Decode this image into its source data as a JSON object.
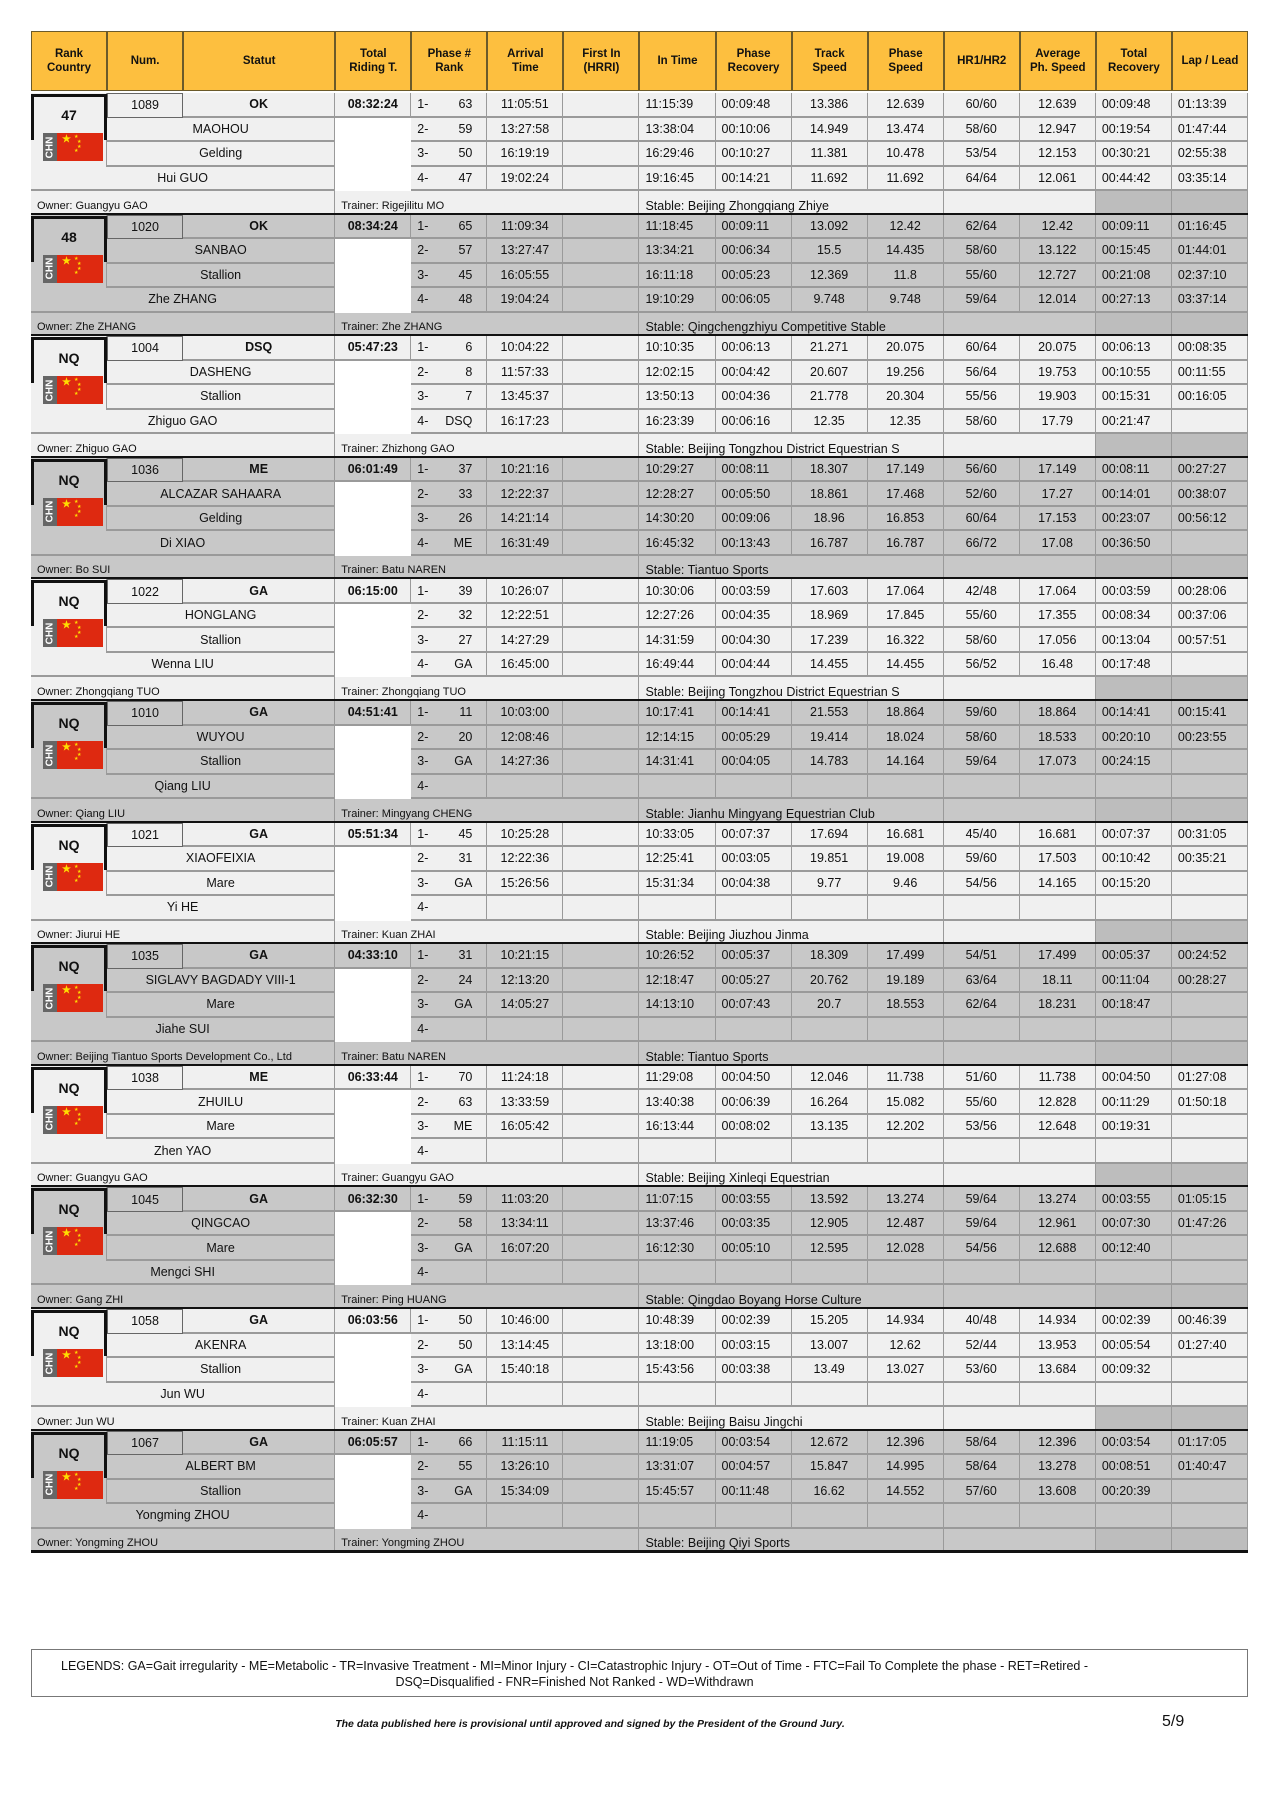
{
  "colors": {
    "header_bg": "#fdbf3f",
    "row_light": "#f0f0f0",
    "row_dark": "#c8c8c8",
    "cell_gray": "#bdbdbd",
    "flag_red": "#de2910"
  },
  "headers": [
    "Rank\nCountry",
    "Num.",
    "Statut",
    "Total\nRiding T.",
    "Phase #\nRank",
    "Arrival\nTime",
    "First In\n(HRRI)",
    "In Time",
    "Phase\nRecovery",
    "Track\nSpeed",
    "Phase\nSpeed",
    "HR1/HR2",
    "Average\nPh. Speed",
    "Total\nRecovery",
    "Lap / Lead"
  ],
  "groups": [
    {
      "rank": "47",
      "country": "CHN",
      "num": "1089",
      "statut": "OK",
      "total": "08:32:24",
      "horse": "MAOHOU",
      "sex": "Gelding",
      "rider": "Hui GUO",
      "owner": "Owner: Guangyu GAO",
      "trainer": "Trainer: Rigejilitu MO",
      "stable": "Stable: Beijing Zhongqiang Zhiye",
      "phases": [
        [
          "1-",
          "63",
          "11:05:51",
          "",
          "11:15:39",
          "00:09:48",
          "13.386",
          "12.639",
          "60/60",
          "12.639",
          "00:09:48",
          "01:13:39"
        ],
        [
          "2-",
          "59",
          "13:27:58",
          "",
          "13:38:04",
          "00:10:06",
          "14.949",
          "13.474",
          "58/60",
          "12.947",
          "00:19:54",
          "01:47:44"
        ],
        [
          "3-",
          "50",
          "16:19:19",
          "",
          "16:29:46",
          "00:10:27",
          "11.381",
          "10.478",
          "53/54",
          "12.153",
          "00:30:21",
          "02:55:38"
        ],
        [
          "4-",
          "47",
          "19:02:24",
          "",
          "19:16:45",
          "00:14:21",
          "11.692",
          "11.692",
          "64/64",
          "12.061",
          "00:44:42",
          "03:35:14"
        ]
      ]
    },
    {
      "rank": "48",
      "country": "CHN",
      "num": "1020",
      "statut": "OK",
      "total": "08:34:24",
      "horse": "SANBAO",
      "sex": "Stallion",
      "rider": "Zhe ZHANG",
      "owner": "Owner: Zhe ZHANG",
      "trainer": "Trainer: Zhe ZHANG",
      "stable": "Stable: Qingchengzhiyu Competitive Stable",
      "phases": [
        [
          "1-",
          "65",
          "11:09:34",
          "",
          "11:18:45",
          "00:09:11",
          "13.092",
          "12.42",
          "62/64",
          "12.42",
          "00:09:11",
          "01:16:45"
        ],
        [
          "2-",
          "57",
          "13:27:47",
          "",
          "13:34:21",
          "00:06:34",
          "15.5",
          "14.435",
          "58/60",
          "13.122",
          "00:15:45",
          "01:44:01"
        ],
        [
          "3-",
          "45",
          "16:05:55",
          "",
          "16:11:18",
          "00:05:23",
          "12.369",
          "11.8",
          "55/60",
          "12.727",
          "00:21:08",
          "02:37:10"
        ],
        [
          "4-",
          "48",
          "19:04:24",
          "",
          "19:10:29",
          "00:06:05",
          "9.748",
          "9.748",
          "59/64",
          "12.014",
          "00:27:13",
          "03:37:14"
        ]
      ]
    },
    {
      "rank": "NQ",
      "country": "CHN",
      "num": "1004",
      "statut": "DSQ",
      "total": "05:47:23",
      "horse": "DASHENG",
      "sex": "Stallion",
      "rider": "Zhiguo GAO",
      "owner": "Owner: Zhiguo GAO",
      "trainer": "Trainer: Zhizhong GAO",
      "stable": "Stable: Beijing Tongzhou District Equestrian S",
      "phases": [
        [
          "1-",
          "6",
          "10:04:22",
          "",
          "10:10:35",
          "00:06:13",
          "21.271",
          "20.075",
          "60/64",
          "20.075",
          "00:06:13",
          "00:08:35"
        ],
        [
          "2-",
          "8",
          "11:57:33",
          "",
          "12:02:15",
          "00:04:42",
          "20.607",
          "19.256",
          "56/64",
          "19.753",
          "00:10:55",
          "00:11:55"
        ],
        [
          "3-",
          "7",
          "13:45:37",
          "",
          "13:50:13",
          "00:04:36",
          "21.778",
          "20.304",
          "55/56",
          "19.903",
          "00:15:31",
          "00:16:05"
        ],
        [
          "4-",
          "DSQ",
          "16:17:23",
          "",
          "16:23:39",
          "00:06:16",
          "12.35",
          "12.35",
          "58/60",
          "17.79",
          "00:21:47",
          ""
        ]
      ]
    },
    {
      "rank": "NQ",
      "country": "CHN",
      "num": "1036",
      "statut": "ME",
      "total": "06:01:49",
      "horse": "ALCAZAR SAHAARA",
      "sex": "Gelding",
      "rider": "Di XIAO",
      "owner": "Owner: Bo SUI",
      "trainer": "Trainer: Batu NAREN",
      "stable": "Stable: Tiantuo Sports",
      "phases": [
        [
          "1-",
          "37",
          "10:21:16",
          "",
          "10:29:27",
          "00:08:11",
          "18.307",
          "17.149",
          "56/60",
          "17.149",
          "00:08:11",
          "00:27:27"
        ],
        [
          "2-",
          "33",
          "12:22:37",
          "",
          "12:28:27",
          "00:05:50",
          "18.861",
          "17.468",
          "52/60",
          "17.27",
          "00:14:01",
          "00:38:07"
        ],
        [
          "3-",
          "26",
          "14:21:14",
          "",
          "14:30:20",
          "00:09:06",
          "18.96",
          "16.853",
          "60/64",
          "17.153",
          "00:23:07",
          "00:56:12"
        ],
        [
          "4-",
          "ME",
          "16:31:49",
          "",
          "16:45:32",
          "00:13:43",
          "16.787",
          "16.787",
          "66/72",
          "17.08",
          "00:36:50",
          ""
        ]
      ]
    },
    {
      "rank": "NQ",
      "country": "CHN",
      "num": "1022",
      "statut": "GA",
      "total": "06:15:00",
      "horse": "HONGLANG",
      "sex": "Stallion",
      "rider": "Wenna LIU",
      "owner": "Owner: Zhongqiang TUO",
      "trainer": "Trainer: Zhongqiang TUO",
      "stable": "Stable: Beijing Tongzhou District Equestrian S",
      "phases": [
        [
          "1-",
          "39",
          "10:26:07",
          "",
          "10:30:06",
          "00:03:59",
          "17.603",
          "17.064",
          "42/48",
          "17.064",
          "00:03:59",
          "00:28:06"
        ],
        [
          "2-",
          "32",
          "12:22:51",
          "",
          "12:27:26",
          "00:04:35",
          "18.969",
          "17.845",
          "55/60",
          "17.355",
          "00:08:34",
          "00:37:06"
        ],
        [
          "3-",
          "27",
          "14:27:29",
          "",
          "14:31:59",
          "00:04:30",
          "17.239",
          "16.322",
          "58/60",
          "17.056",
          "00:13:04",
          "00:57:51"
        ],
        [
          "4-",
          "GA",
          "16:45:00",
          "",
          "16:49:44",
          "00:04:44",
          "14.455",
          "14.455",
          "56/52",
          "16.48",
          "00:17:48",
          ""
        ]
      ]
    },
    {
      "rank": "NQ",
      "country": "CHN",
      "num": "1010",
      "statut": "GA",
      "total": "04:51:41",
      "horse": "WUYOU",
      "sex": "Stallion",
      "rider": "Qiang LIU",
      "owner": "Owner: Qiang LIU",
      "trainer": "Trainer: Mingyang CHENG",
      "stable": "Stable: Jianhu Mingyang Equestrian Club",
      "phases": [
        [
          "1-",
          "11",
          "10:03:00",
          "",
          "10:17:41",
          "00:14:41",
          "21.553",
          "18.864",
          "59/60",
          "18.864",
          "00:14:41",
          "00:15:41"
        ],
        [
          "2-",
          "20",
          "12:08:46",
          "",
          "12:14:15",
          "00:05:29",
          "19.414",
          "18.024",
          "58/60",
          "18.533",
          "00:20:10",
          "00:23:55"
        ],
        [
          "3-",
          "GA",
          "14:27:36",
          "",
          "14:31:41",
          "00:04:05",
          "14.783",
          "14.164",
          "59/64",
          "17.073",
          "00:24:15",
          ""
        ],
        [
          "4-",
          "",
          "",
          "",
          "",
          "",
          "",
          "",
          "",
          "",
          "",
          ""
        ]
      ]
    },
    {
      "rank": "NQ",
      "country": "CHN",
      "num": "1021",
      "statut": "GA",
      "total": "05:51:34",
      "horse": "XIAOFEIXIA",
      "sex": "Mare",
      "rider": "Yi HE",
      "owner": "Owner: Jiurui HE",
      "trainer": "Trainer: Kuan ZHAI",
      "stable": "Stable: Beijing Jiuzhou Jinma",
      "phases": [
        [
          "1-",
          "45",
          "10:25:28",
          "",
          "10:33:05",
          "00:07:37",
          "17.694",
          "16.681",
          "45/40",
          "16.681",
          "00:07:37",
          "00:31:05"
        ],
        [
          "2-",
          "31",
          "12:22:36",
          "",
          "12:25:41",
          "00:03:05",
          "19.851",
          "19.008",
          "59/60",
          "17.503",
          "00:10:42",
          "00:35:21"
        ],
        [
          "3-",
          "GA",
          "15:26:56",
          "",
          "15:31:34",
          "00:04:38",
          "9.77",
          "9.46",
          "54/56",
          "14.165",
          "00:15:20",
          ""
        ],
        [
          "4-",
          "",
          "",
          "",
          "",
          "",
          "",
          "",
          "",
          "",
          "",
          ""
        ]
      ]
    },
    {
      "rank": "NQ",
      "country": "CHN",
      "num": "1035",
      "statut": "GA",
      "total": "04:33:10",
      "horse": "SIGLAVY BAGDADY VIII-1",
      "sex": "Mare",
      "rider": "Jiahe SUI",
      "owner": "Owner: Beijing Tiantuo Sports Development Co., Ltd",
      "trainer": "Trainer: Batu NAREN",
      "stable": "Stable: Tiantuo Sports",
      "phases": [
        [
          "1-",
          "31",
          "10:21:15",
          "",
          "10:26:52",
          "00:05:37",
          "18.309",
          "17.499",
          "54/51",
          "17.499",
          "00:05:37",
          "00:24:52"
        ],
        [
          "2-",
          "24",
          "12:13:20",
          "",
          "12:18:47",
          "00:05:27",
          "20.762",
          "19.189",
          "63/64",
          "18.11",
          "00:11:04",
          "00:28:27"
        ],
        [
          "3-",
          "GA",
          "14:05:27",
          "",
          "14:13:10",
          "00:07:43",
          "20.7",
          "18.553",
          "62/64",
          "18.231",
          "00:18:47",
          ""
        ],
        [
          "4-",
          "",
          "",
          "",
          "",
          "",
          "",
          "",
          "",
          "",
          "",
          ""
        ]
      ]
    },
    {
      "rank": "NQ",
      "country": "CHN",
      "num": "1038",
      "statut": "ME",
      "total": "06:33:44",
      "horse": "ZHUILU",
      "sex": "Mare",
      "rider": "Zhen YAO",
      "owner": "Owner: Guangyu GAO",
      "trainer": "Trainer: Guangyu GAO",
      "stable": "Stable: Beijing Xinleqi Equestrian",
      "phases": [
        [
          "1-",
          "70",
          "11:24:18",
          "",
          "11:29:08",
          "00:04:50",
          "12.046",
          "11.738",
          "51/60",
          "11.738",
          "00:04:50",
          "01:27:08"
        ],
        [
          "2-",
          "63",
          "13:33:59",
          "",
          "13:40:38",
          "00:06:39",
          "16.264",
          "15.082",
          "55/60",
          "12.828",
          "00:11:29",
          "01:50:18"
        ],
        [
          "3-",
          "ME",
          "16:05:42",
          "",
          "16:13:44",
          "00:08:02",
          "13.135",
          "12.202",
          "53/56",
          "12.648",
          "00:19:31",
          ""
        ],
        [
          "4-",
          "",
          "",
          "",
          "",
          "",
          "",
          "",
          "",
          "",
          "",
          ""
        ]
      ]
    },
    {
      "rank": "NQ",
      "country": "CHN",
      "num": "1045",
      "statut": "GA",
      "total": "06:32:30",
      "horse": "QINGCAO",
      "sex": "Mare",
      "rider": "Mengci SHI",
      "owner": "Owner: Gang ZHI",
      "trainer": "Trainer: Ping HUANG",
      "stable": "Stable: Qingdao Boyang Horse Culture",
      "phases": [
        [
          "1-",
          "59",
          "11:03:20",
          "",
          "11:07:15",
          "00:03:55",
          "13.592",
          "13.274",
          "59/64",
          "13.274",
          "00:03:55",
          "01:05:15"
        ],
        [
          "2-",
          "58",
          "13:34:11",
          "",
          "13:37:46",
          "00:03:35",
          "12.905",
          "12.487",
          "59/64",
          "12.961",
          "00:07:30",
          "01:47:26"
        ],
        [
          "3-",
          "GA",
          "16:07:20",
          "",
          "16:12:30",
          "00:05:10",
          "12.595",
          "12.028",
          "54/56",
          "12.688",
          "00:12:40",
          ""
        ],
        [
          "4-",
          "",
          "",
          "",
          "",
          "",
          "",
          "",
          "",
          "",
          "",
          ""
        ]
      ]
    },
    {
      "rank": "NQ",
      "country": "CHN",
      "num": "1058",
      "statut": "GA",
      "total": "06:03:56",
      "horse": "AKENRA",
      "sex": "Stallion",
      "rider": "Jun WU",
      "owner": "Owner: Jun WU",
      "trainer": "Trainer: Kuan ZHAI",
      "stable": "Stable: Beijing Baisu Jingchi",
      "phases": [
        [
          "1-",
          "50",
          "10:46:00",
          "",
          "10:48:39",
          "00:02:39",
          "15.205",
          "14.934",
          "40/48",
          "14.934",
          "00:02:39",
          "00:46:39"
        ],
        [
          "2-",
          "50",
          "13:14:45",
          "",
          "13:18:00",
          "00:03:15",
          "13.007",
          "12.62",
          "52/44",
          "13.953",
          "00:05:54",
          "01:27:40"
        ],
        [
          "3-",
          "GA",
          "15:40:18",
          "",
          "15:43:56",
          "00:03:38",
          "13.49",
          "13.027",
          "53/60",
          "13.684",
          "00:09:32",
          ""
        ],
        [
          "4-",
          "",
          "",
          "",
          "",
          "",
          "",
          "",
          "",
          "",
          "",
          ""
        ]
      ]
    },
    {
      "rank": "NQ",
      "country": "CHN",
      "num": "1067",
      "statut": "GA",
      "total": "06:05:57",
      "horse": "ALBERT BM",
      "sex": "Stallion",
      "rider": "Yongming ZHOU",
      "owner": "Owner: Yongming ZHOU",
      "trainer": "Trainer: Yongming ZHOU",
      "stable": "Stable: Beijing Qiyi Sports",
      "phases": [
        [
          "1-",
          "66",
          "11:15:11",
          "",
          "11:19:05",
          "00:03:54",
          "12.672",
          "12.396",
          "58/64",
          "12.396",
          "00:03:54",
          "01:17:05"
        ],
        [
          "2-",
          "55",
          "13:26:10",
          "",
          "13:31:07",
          "00:04:57",
          "15.847",
          "14.995",
          "58/64",
          "13.278",
          "00:08:51",
          "01:40:47"
        ],
        [
          "3-",
          "GA",
          "15:34:09",
          "",
          "15:45:57",
          "00:11:48",
          "16.62",
          "14.552",
          "57/60",
          "13.608",
          "00:20:39",
          ""
        ],
        [
          "4-",
          "",
          "",
          "",
          "",
          "",
          "",
          "",
          "",
          "",
          "",
          ""
        ]
      ]
    }
  ],
  "legend": "LEGENDS: GA=Gait irregularity - ME=Metabolic - TR=Invasive Treatment - MI=Minor Injury - CI=Catastrophic Injury - OT=Out of Time - FTC=Fail To Complete the phase - RET=Retired - DSQ=Disqualified - FNR=Finished Not Ranked - WD=Withdrawn",
  "footer": "The data published here is provisional until approved and signed by the President of the Ground Jury.",
  "page_number": "5/9"
}
